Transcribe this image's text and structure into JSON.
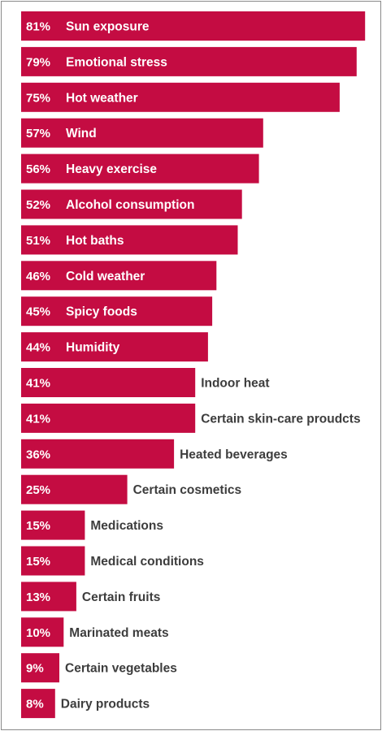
{
  "chart_data": {
    "type": "bar",
    "orientation": "horizontal",
    "categories": [
      "Sun exposure",
      "Emotional stress",
      "Hot weather",
      "Wind",
      "Heavy exercise",
      "Alcohol consumption",
      "Hot baths",
      "Cold weather",
      "Spicy foods",
      "Humidity",
      "Indoor heat",
      "Certain skin-care proudcts",
      "Heated beverages",
      "Certain cosmetics",
      "Medications",
      "Medical conditions",
      "Certain fruits",
      "Marinated meats",
      "Certain vegetables",
      "Dairy products"
    ],
    "values": [
      81,
      79,
      75,
      57,
      56,
      52,
      51,
      46,
      45,
      44,
      41,
      41,
      36,
      25,
      15,
      15,
      13,
      10,
      9,
      8
    ],
    "value_labels": [
      "81%",
      "79%",
      "75%",
      "57%",
      "56%",
      "52%",
      "51%",
      "46%",
      "45%",
      "44%",
      "41%",
      "41%",
      "36%",
      "25%",
      "15%",
      "15%",
      "13%",
      "10%",
      "9%",
      "8%"
    ],
    "bar_color": "#c40c42",
    "outside_label_color": "#3d3d3d",
    "label_placement": "inside bar for values 44% and above, outside bar for values below 44%",
    "grid": false,
    "legend": "none"
  }
}
